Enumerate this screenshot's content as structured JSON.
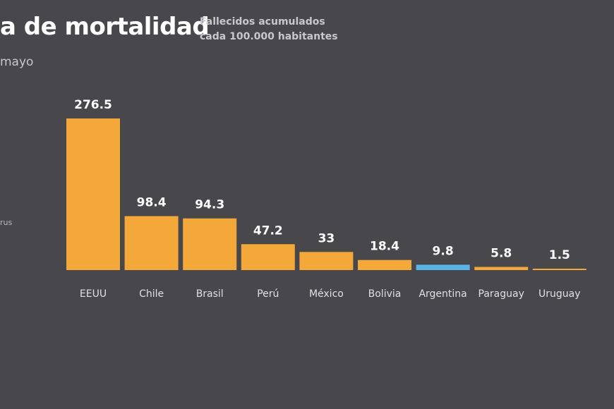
{
  "title": "a de mortalidad",
  "subtitle_lines": [
    "Fallecidos acumulados",
    "cada 100.000 habitantes"
  ],
  "date_fragment": "mayo",
  "side_fragment": "rus",
  "colors": {
    "default_bar": "#f5a83a",
    "highlight_bar": "#5ab3e6",
    "label": "#ffffff",
    "category": "#e0e0e0"
  },
  "chart_data": {
    "type": "bar",
    "title": "a de mortalidad",
    "subtitle": "Fallecidos acumulados cada 100.000 habitantes",
    "categories": [
      "EEUU",
      "Chile",
      "Brasil",
      "Perú",
      "México",
      "Bolivia",
      "Argentina",
      "Paraguay",
      "Uruguay"
    ],
    "values": [
      276.5,
      98.4,
      94.3,
      47.2,
      33,
      18.4,
      9.8,
      5.8,
      1.5
    ],
    "value_labels": [
      "276.5",
      "98.4",
      "94.3",
      "47.2",
      "33",
      "18.4",
      "9.8",
      "5.8",
      "1.5"
    ],
    "highlight": "Argentina",
    "ylim": [
      0,
      276.5
    ],
    "grid": false,
    "axes_visible": false
  }
}
